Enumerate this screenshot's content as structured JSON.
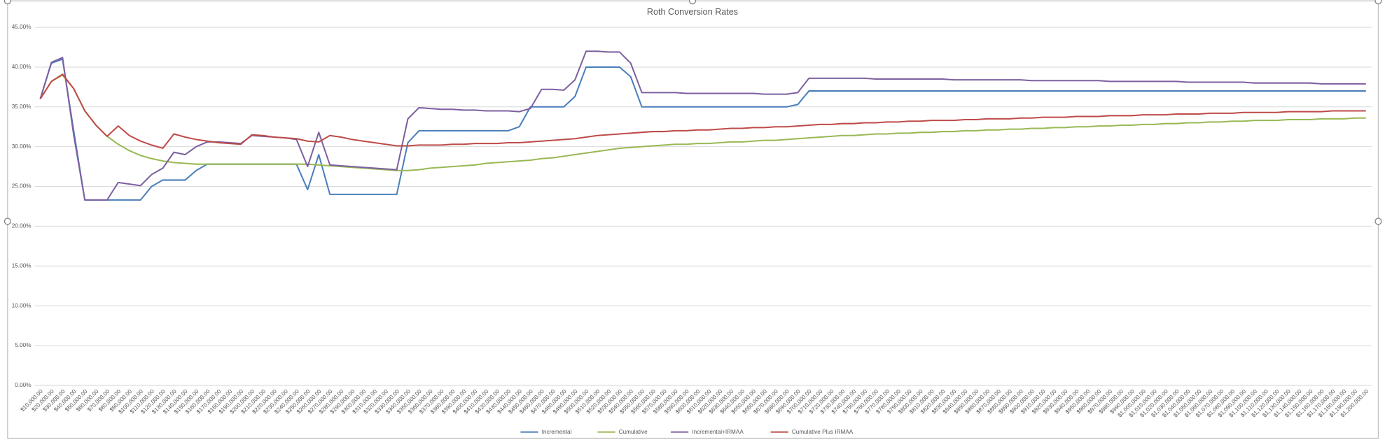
{
  "chart_data": {
    "type": "line",
    "title": "Roth Conversion Rates",
    "categories": [
      "$10,000.00",
      "$20,000.00",
      "$30,000.00",
      "$40,000.00",
      "$50,000.00",
      "$60,000.00",
      "$70,000.00",
      "$80,000.00",
      "$90,000.00",
      "$100,000.00",
      "$110,000.00",
      "$120,000.00",
      "$130,000.00",
      "$140,000.00",
      "$150,000.00",
      "$160,000.00",
      "$170,000.00",
      "$180,000.00",
      "$190,000.00",
      "$200,000.00",
      "$210,000.00",
      "$220,000.00",
      "$230,000.00",
      "$240,000.00",
      "$250,000.00",
      "$260,000.00",
      "$270,000.00",
      "$280,000.00",
      "$290,000.00",
      "$300,000.00",
      "$310,000.00",
      "$320,000.00",
      "$330,000.00",
      "$340,000.00",
      "$350,000.00",
      "$360,000.00",
      "$370,000.00",
      "$380,000.00",
      "$390,000.00",
      "$400,000.00",
      "$410,000.00",
      "$420,000.00",
      "$430,000.00",
      "$440,000.00",
      "$450,000.00",
      "$460,000.00",
      "$470,000.00",
      "$480,000.00",
      "$490,000.00",
      "$500,000.00",
      "$510,000.00",
      "$520,000.00",
      "$530,000.00",
      "$540,000.00",
      "$550,000.00",
      "$560,000.00",
      "$570,000.00",
      "$580,000.00",
      "$590,000.00",
      "$600,000.00",
      "$610,000.00",
      "$620,000.00",
      "$630,000.00",
      "$640,000.00",
      "$650,000.00",
      "$660,000.00",
      "$670,000.00",
      "$680,000.00",
      "$690,000.00",
      "$700,000.00",
      "$710,000.00",
      "$720,000.00",
      "$730,000.00",
      "$740,000.00",
      "$750,000.00",
      "$760,000.00",
      "$770,000.00",
      "$780,000.00",
      "$790,000.00",
      "$800,000.00",
      "$810,000.00",
      "$820,000.00",
      "$830,000.00",
      "$840,000.00",
      "$850,000.00",
      "$860,000.00",
      "$870,000.00",
      "$880,000.00",
      "$890,000.00",
      "$900,000.00",
      "$910,000.00",
      "$920,000.00",
      "$930,000.00",
      "$940,000.00",
      "$950,000.00",
      "$960,000.00",
      "$970,000.00",
      "$980,000.00",
      "$990,000.00",
      "$1,000,000.00",
      "$1,010,000.00",
      "$1,020,000.00",
      "$1,030,000.00",
      "$1,040,000.00",
      "$1,050,000.00",
      "$1,060,000.00",
      "$1,070,000.00",
      "$1,080,000.00",
      "$1,090,000.00",
      "$1,100,000.00",
      "$1,110,000.00",
      "$1,120,000.00",
      "$1,130,000.00",
      "$1,140,000.00",
      "$1,150,000.00",
      "$1,160,000.00",
      "$1,170,000.00",
      "$1,180,000.00",
      "$1,190,000.00",
      "$1,200,000.00"
    ],
    "series": [
      {
        "name": "Incremental",
        "color": "#4a7ebb",
        "values": [
          36.0,
          40.5,
          41.0,
          32.0,
          23.3,
          23.3,
          23.3,
          23.3,
          23.3,
          23.3,
          25.0,
          25.8,
          25.8,
          25.8,
          27.0,
          27.8,
          27.8,
          27.8,
          27.8,
          27.8,
          27.8,
          27.8,
          27.8,
          27.8,
          24.6,
          29.0,
          24.0,
          24.0,
          24.0,
          24.0,
          24.0,
          24.0,
          24.0,
          30.5,
          32.0,
          32.0,
          32.0,
          32.0,
          32.0,
          32.0,
          32.0,
          32.0,
          32.0,
          32.5,
          35.0,
          35.0,
          35.0,
          35.0,
          36.3,
          40.0,
          40.0,
          40.0,
          40.0,
          38.8,
          35.0,
          35.0,
          35.0,
          35.0,
          35.0,
          35.0,
          35.0,
          35.0,
          35.0,
          35.0,
          35.0,
          35.0,
          35.0,
          35.0,
          35.3,
          37.0,
          37.0,
          37.0,
          37.0,
          37.0,
          37.0,
          37.0,
          37.0,
          37.0,
          37.0,
          37.0,
          37.0,
          37.0,
          37.0,
          37.0,
          37.0,
          37.0,
          37.0,
          37.0,
          37.0,
          37.0,
          37.0,
          37.0,
          37.0,
          37.0,
          37.0,
          37.0,
          37.0,
          37.0,
          37.0,
          37.0,
          37.0,
          37.0,
          37.0,
          37.0,
          37.0,
          37.0,
          37.0,
          37.0,
          37.0,
          37.0,
          37.0,
          37.0,
          37.0,
          37.0,
          37.0,
          37.0,
          37.0,
          37.0,
          37.0,
          37.0
        ]
      },
      {
        "name": "Cumulative",
        "color": "#98b954",
        "values": [
          36.0,
          38.2,
          39.0,
          37.3,
          34.5,
          32.7,
          31.3,
          30.3,
          29.5,
          28.9,
          28.5,
          28.2,
          28.0,
          27.9,
          27.8,
          27.8,
          27.8,
          27.8,
          27.8,
          27.8,
          27.8,
          27.8,
          27.8,
          27.8,
          27.8,
          27.7,
          27.6,
          27.5,
          27.4,
          27.3,
          27.2,
          27.1,
          27.0,
          27.0,
          27.1,
          27.3,
          27.4,
          27.5,
          27.6,
          27.7,
          27.9,
          28.0,
          28.1,
          28.2,
          28.3,
          28.5,
          28.6,
          28.8,
          29.0,
          29.2,
          29.4,
          29.6,
          29.8,
          29.9,
          30.0,
          30.1,
          30.2,
          30.3,
          30.3,
          30.4,
          30.4,
          30.5,
          30.6,
          30.6,
          30.7,
          30.8,
          30.8,
          30.9,
          31.0,
          31.1,
          31.2,
          31.3,
          31.4,
          31.4,
          31.5,
          31.6,
          31.6,
          31.7,
          31.7,
          31.8,
          31.8,
          31.9,
          31.9,
          32.0,
          32.0,
          32.1,
          32.1,
          32.2,
          32.2,
          32.3,
          32.3,
          32.4,
          32.4,
          32.5,
          32.5,
          32.6,
          32.6,
          32.7,
          32.7,
          32.8,
          32.8,
          32.9,
          32.9,
          33.0,
          33.0,
          33.1,
          33.1,
          33.2,
          33.2,
          33.3,
          33.3,
          33.3,
          33.4,
          33.4,
          33.4,
          33.5,
          33.5,
          33.5,
          33.6,
          33.6
        ]
      },
      {
        "name": "Incremental+IRMAA",
        "color": "#7d60a0",
        "values": [
          36.0,
          40.6,
          41.2,
          31.5,
          23.3,
          23.3,
          23.3,
          25.5,
          25.3,
          25.1,
          26.5,
          27.3,
          29.3,
          29.0,
          30.0,
          30.6,
          30.6,
          30.5,
          30.4,
          31.4,
          31.3,
          31.2,
          31.1,
          30.9,
          27.5,
          31.8,
          27.7,
          27.6,
          27.5,
          27.4,
          27.3,
          27.2,
          27.1,
          33.5,
          34.9,
          34.8,
          34.7,
          34.7,
          34.6,
          34.6,
          34.5,
          34.5,
          34.5,
          34.4,
          34.8,
          37.2,
          37.2,
          37.1,
          38.4,
          42.0,
          42.0,
          41.9,
          41.9,
          40.5,
          36.8,
          36.8,
          36.8,
          36.8,
          36.7,
          36.7,
          36.7,
          36.7,
          36.7,
          36.7,
          36.7,
          36.6,
          36.6,
          36.6,
          36.8,
          38.6,
          38.6,
          38.6,
          38.6,
          38.6,
          38.6,
          38.5,
          38.5,
          38.5,
          38.5,
          38.5,
          38.5,
          38.5,
          38.4,
          38.4,
          38.4,
          38.4,
          38.4,
          38.4,
          38.4,
          38.3,
          38.3,
          38.3,
          38.3,
          38.3,
          38.3,
          38.3,
          38.2,
          38.2,
          38.2,
          38.2,
          38.2,
          38.2,
          38.2,
          38.1,
          38.1,
          38.1,
          38.1,
          38.1,
          38.1,
          38.0,
          38.0,
          38.0,
          38.0,
          38.0,
          38.0,
          37.9,
          37.9,
          37.9,
          37.9,
          37.9
        ]
      },
      {
        "name": "Cumulative Plus IRMAA",
        "color": "#be4b48",
        "values": [
          36.0,
          38.2,
          39.1,
          37.3,
          34.5,
          32.7,
          31.3,
          32.6,
          31.4,
          30.7,
          30.2,
          29.8,
          31.6,
          31.2,
          30.9,
          30.7,
          30.5,
          30.4,
          30.3,
          31.5,
          31.4,
          31.2,
          31.1,
          31.0,
          30.7,
          30.6,
          31.4,
          31.2,
          30.9,
          30.7,
          30.5,
          30.3,
          30.1,
          30.1,
          30.2,
          30.2,
          30.2,
          30.3,
          30.3,
          30.4,
          30.4,
          30.4,
          30.5,
          30.5,
          30.6,
          30.7,
          30.8,
          30.9,
          31.0,
          31.2,
          31.4,
          31.5,
          31.6,
          31.7,
          31.8,
          31.9,
          31.9,
          32.0,
          32.0,
          32.1,
          32.1,
          32.2,
          32.3,
          32.3,
          32.4,
          32.4,
          32.5,
          32.5,
          32.6,
          32.7,
          32.8,
          32.8,
          32.9,
          32.9,
          33.0,
          33.0,
          33.1,
          33.1,
          33.2,
          33.2,
          33.3,
          33.3,
          33.3,
          33.4,
          33.4,
          33.5,
          33.5,
          33.5,
          33.6,
          33.6,
          33.7,
          33.7,
          33.7,
          33.8,
          33.8,
          33.8,
          33.9,
          33.9,
          33.9,
          34.0,
          34.0,
          34.0,
          34.1,
          34.1,
          34.1,
          34.2,
          34.2,
          34.2,
          34.3,
          34.3,
          34.3,
          34.3,
          34.4,
          34.4,
          34.4,
          34.4,
          34.5,
          34.5,
          34.5,
          34.5
        ]
      }
    ],
    "ylim": [
      0,
      45
    ],
    "yticks": [
      {
        "value": 0,
        "label": "0.00%"
      },
      {
        "value": 5,
        "label": "5.00%"
      },
      {
        "value": 10,
        "label": "10.00%"
      },
      {
        "value": 15,
        "label": "15.00%"
      },
      {
        "value": 20,
        "label": "20.00%"
      },
      {
        "value": 25,
        "label": "25.00%"
      },
      {
        "value": 30,
        "label": "30.00%"
      },
      {
        "value": 35,
        "label": "35.00%"
      },
      {
        "value": 40,
        "label": "40.00%"
      },
      {
        "value": 45,
        "label": "45.00%"
      }
    ],
    "grid": true,
    "legend": "bottom"
  }
}
